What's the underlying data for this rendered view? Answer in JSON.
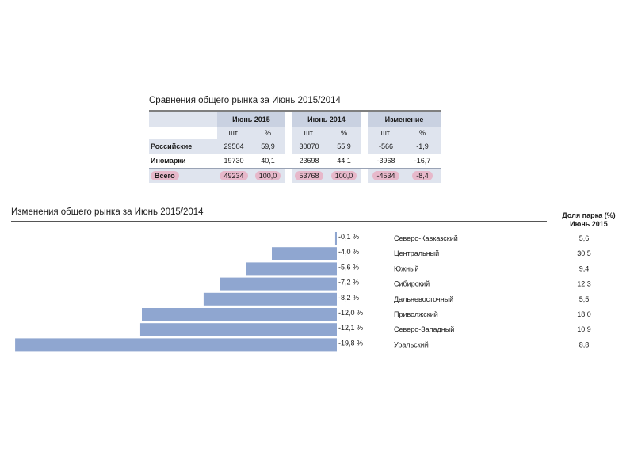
{
  "table": {
    "title": "Сравнения общего рынка за Июнь 2015/2014",
    "groups": [
      "Июнь 2015",
      "Июнь 2014",
      "Изменение"
    ],
    "units": [
      "шт.",
      "%",
      "шт.",
      "%",
      "шт.",
      "%"
    ],
    "rows": [
      {
        "label": "Российские",
        "values": [
          "29504",
          "59,9",
          "30070",
          "55,9",
          "-566",
          "-1,9"
        ]
      },
      {
        "label": "Иномарки",
        "values": [
          "19730",
          "40,1",
          "23698",
          "44,1",
          "-3968",
          "-16,7"
        ]
      },
      {
        "label": "Всего",
        "values": [
          "49234",
          "100,0",
          "53768",
          "100,0",
          "-4534",
          "-8,4"
        ]
      }
    ],
    "highlight_color": "#e7b8ca"
  },
  "chart_data": {
    "type": "bar",
    "title": "Изменения общего рынка за Июнь 2015/2014",
    "share_header": [
      "Доля парка (%)",
      "Июнь 2015"
    ],
    "bar_color": "#8fa6d0",
    "categories": [
      "Северо-Кавказский",
      "Центральный",
      "Южный",
      "Сибирский",
      "Дальневосточный",
      "Приволжский",
      "Северо-Западный",
      "Уральский"
    ],
    "values": [
      -0.1,
      -4.0,
      -5.6,
      -7.2,
      -8.2,
      -12.0,
      -12.1,
      -19.8
    ],
    "value_labels": [
      "-0,1 %",
      "-4,0 %",
      "-5,6 %",
      "-7,2 %",
      "-8,2 %",
      "-12,0 %",
      "-12,1 %",
      "-19,8 %"
    ],
    "share_values": [
      "5,6",
      "30,5",
      "9,4",
      "12,3",
      "5,5",
      "18,0",
      "10,9",
      "8,8"
    ]
  }
}
